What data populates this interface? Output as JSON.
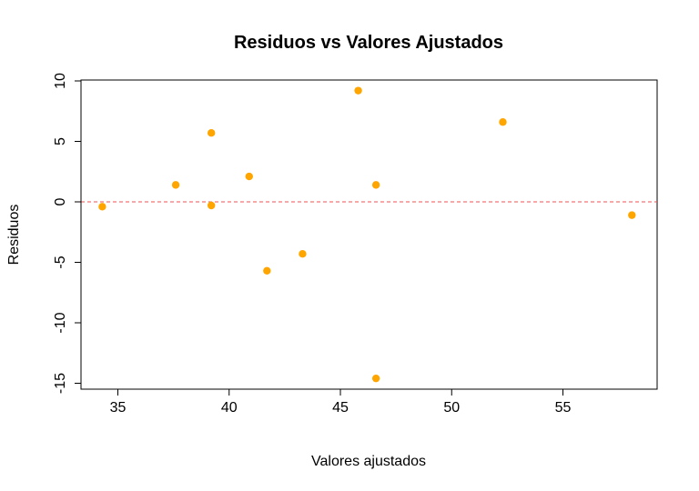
{
  "chart_data": {
    "type": "scatter",
    "title": "Residuos vs Valores Ajustados",
    "xlabel": "Valores ajustados",
    "ylabel": "Residuos",
    "xlim": [
      33.4,
      59.1
    ],
    "ylim": [
      -15.5,
      10.0
    ],
    "xticks": [
      35,
      40,
      45,
      50,
      55
    ],
    "yticks": [
      -15,
      -10,
      -5,
      0,
      5,
      10
    ],
    "reference_line": {
      "y": 0,
      "color": "#f05050",
      "style": "dashed"
    },
    "point_color": "#ffa500",
    "points": [
      {
        "x": 34.3,
        "y": -0.4
      },
      {
        "x": 37.6,
        "y": 1.4
      },
      {
        "x": 39.2,
        "y": 5.7
      },
      {
        "x": 39.2,
        "y": -0.3
      },
      {
        "x": 40.9,
        "y": 2.1
      },
      {
        "x": 41.7,
        "y": -5.7
      },
      {
        "x": 43.3,
        "y": -4.3
      },
      {
        "x": 45.8,
        "y": 9.2
      },
      {
        "x": 46.6,
        "y": 1.4
      },
      {
        "x": 46.6,
        "y": -14.6
      },
      {
        "x": 52.3,
        "y": 6.6
      },
      {
        "x": 58.1,
        "y": -1.1
      }
    ]
  }
}
